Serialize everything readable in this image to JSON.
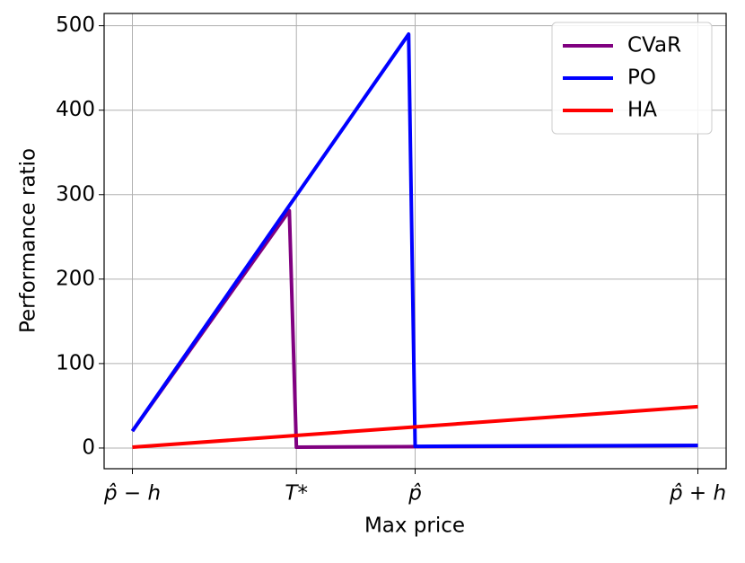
{
  "chart_data": {
    "type": "line",
    "xlabel": "Max price",
    "ylabel": "Performance ratio",
    "xlim": [
      -0.1,
      2.1
    ],
    "ylim": [
      -24.5,
      514.5
    ],
    "xticks": [
      {
        "value": 0,
        "label": "p̂ − h"
      },
      {
        "value": 0.58,
        "label": "T*"
      },
      {
        "value": 1,
        "label": "p̂"
      },
      {
        "value": 2,
        "label": "p̂ + h"
      }
    ],
    "yticks": [
      0,
      100,
      200,
      300,
      400,
      500
    ],
    "grid": true,
    "legend": "upper right",
    "series": [
      {
        "name": "CVaR",
        "color": "#800080",
        "x": [
          0,
          0.555,
          0.58,
          2
        ],
        "values": [
          20,
          281,
          1,
          3
        ]
      },
      {
        "name": "PO",
        "color": "#0000ff",
        "x": [
          0,
          0.977,
          1.0,
          2
        ],
        "values": [
          20,
          490,
          2,
          3
        ]
      },
      {
        "name": "HA",
        "color": "#ff0000",
        "x": [
          0,
          2
        ],
        "values": [
          1,
          49
        ]
      }
    ]
  }
}
